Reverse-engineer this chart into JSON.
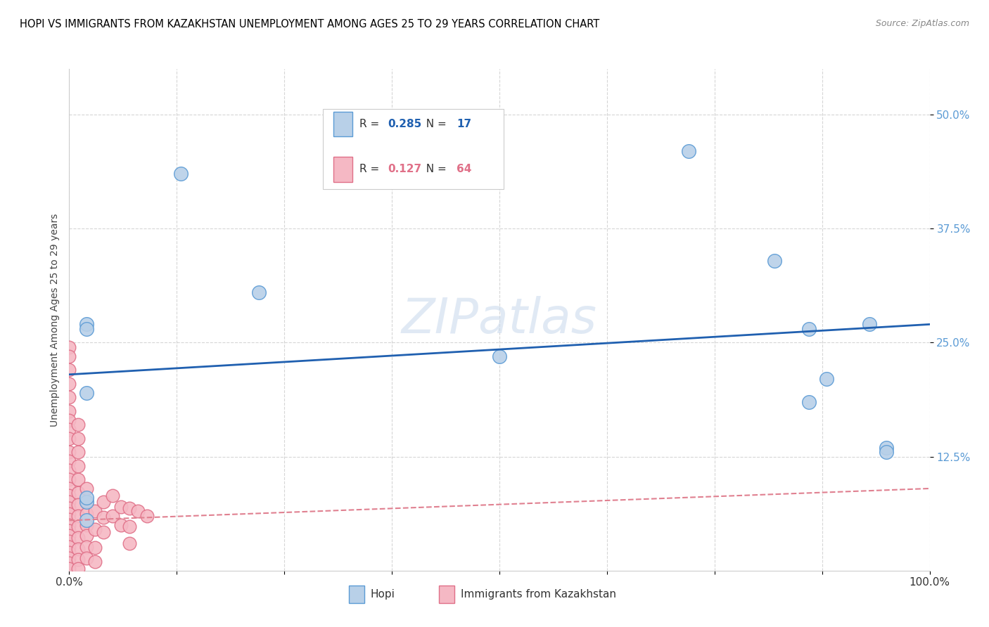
{
  "title": "HOPI VS IMMIGRANTS FROM KAZAKHSTAN UNEMPLOYMENT AMONG AGES 25 TO 29 YEARS CORRELATION CHART",
  "source": "Source: ZipAtlas.com",
  "ylabel": "Unemployment Among Ages 25 to 29 years",
  "watermark": "ZIPatlas",
  "xlim": [
    0,
    1.0
  ],
  "ylim": [
    0,
    0.55
  ],
  "yticks": [
    0.125,
    0.25,
    0.375,
    0.5
  ],
  "ytick_labels": [
    "12.5%",
    "25.0%",
    "37.5%",
    "50.0%"
  ],
  "legend_R_hopi": "0.285",
  "legend_N_hopi": "17",
  "legend_R_immig": "0.127",
  "legend_N_immig": "64",
  "hopi_color": "#b8d0e8",
  "hopi_edge_color": "#5b9bd5",
  "immig_color": "#f5b8c4",
  "immig_edge_color": "#e07088",
  "trendline_hopi_color": "#2060b0",
  "trendline_immig_color": "#e08090",
  "hopi_points": [
    [
      0.02,
      0.27
    ],
    [
      0.02,
      0.265
    ],
    [
      0.13,
      0.435
    ],
    [
      0.22,
      0.305
    ],
    [
      0.02,
      0.195
    ],
    [
      0.02,
      0.075
    ],
    [
      0.02,
      0.055
    ],
    [
      0.02,
      0.08
    ],
    [
      0.5,
      0.235
    ],
    [
      0.72,
      0.46
    ],
    [
      0.82,
      0.34
    ],
    [
      0.86,
      0.265
    ],
    [
      0.86,
      0.185
    ],
    [
      0.88,
      0.21
    ],
    [
      0.93,
      0.27
    ],
    [
      0.95,
      0.135
    ],
    [
      0.95,
      0.13
    ]
  ],
  "immig_points": [
    [
      0.0,
      0.245
    ],
    [
      0.0,
      0.235
    ],
    [
      0.0,
      0.22
    ],
    [
      0.0,
      0.205
    ],
    [
      0.0,
      0.19
    ],
    [
      0.0,
      0.175
    ],
    [
      0.0,
      0.165
    ],
    [
      0.0,
      0.155
    ],
    [
      0.0,
      0.145
    ],
    [
      0.0,
      0.13
    ],
    [
      0.0,
      0.12
    ],
    [
      0.0,
      0.11
    ],
    [
      0.0,
      0.1
    ],
    [
      0.0,
      0.09
    ],
    [
      0.0,
      0.082
    ],
    [
      0.0,
      0.075
    ],
    [
      0.0,
      0.068
    ],
    [
      0.0,
      0.062
    ],
    [
      0.0,
      0.056
    ],
    [
      0.0,
      0.05
    ],
    [
      0.0,
      0.044
    ],
    [
      0.0,
      0.038
    ],
    [
      0.0,
      0.032
    ],
    [
      0.0,
      0.026
    ],
    [
      0.0,
      0.02
    ],
    [
      0.0,
      0.014
    ],
    [
      0.0,
      0.008
    ],
    [
      0.0,
      0.002
    ],
    [
      0.01,
      0.16
    ],
    [
      0.01,
      0.145
    ],
    [
      0.01,
      0.13
    ],
    [
      0.01,
      0.115
    ],
    [
      0.01,
      0.1
    ],
    [
      0.01,
      0.085
    ],
    [
      0.01,
      0.072
    ],
    [
      0.01,
      0.06
    ],
    [
      0.01,
      0.048
    ],
    [
      0.01,
      0.036
    ],
    [
      0.01,
      0.024
    ],
    [
      0.01,
      0.012
    ],
    [
      0.01,
      0.002
    ],
    [
      0.02,
      0.09
    ],
    [
      0.02,
      0.075
    ],
    [
      0.02,
      0.062
    ],
    [
      0.02,
      0.05
    ],
    [
      0.02,
      0.038
    ],
    [
      0.02,
      0.026
    ],
    [
      0.02,
      0.014
    ],
    [
      0.03,
      0.065
    ],
    [
      0.03,
      0.045
    ],
    [
      0.03,
      0.025
    ],
    [
      0.03,
      0.01
    ],
    [
      0.04,
      0.075
    ],
    [
      0.04,
      0.058
    ],
    [
      0.04,
      0.042
    ],
    [
      0.05,
      0.082
    ],
    [
      0.05,
      0.06
    ],
    [
      0.06,
      0.07
    ],
    [
      0.06,
      0.05
    ],
    [
      0.07,
      0.068
    ],
    [
      0.07,
      0.048
    ],
    [
      0.07,
      0.03
    ],
    [
      0.08,
      0.065
    ],
    [
      0.09,
      0.06
    ]
  ],
  "hopi_trendline_x": [
    0.0,
    1.0
  ],
  "hopi_trendline_y": [
    0.215,
    0.27
  ],
  "immig_trendline_x": [
    0.0,
    1.0
  ],
  "immig_trendline_y": [
    0.055,
    0.09
  ]
}
